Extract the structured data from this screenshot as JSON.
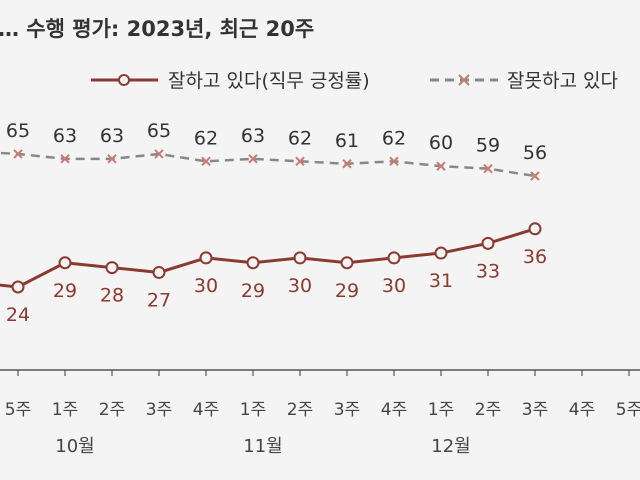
{
  "chart_data": {
    "type": "line",
    "title": "… 수행 평가: 2023년, 최근 20주",
    "x": [
      "5주",
      "1주",
      "2주",
      "3주",
      "4주",
      "1주",
      "2주",
      "3주",
      "4주",
      "1주",
      "2주",
      "3주",
      "4주",
      "5주"
    ],
    "month_labels": [
      {
        "label": "10월",
        "index": 1
      },
      {
        "label": "11월",
        "index": 5
      },
      {
        "label": "12월",
        "index": 9
      }
    ],
    "series": [
      {
        "name": "잘하고 있다(직무 긍정률)",
        "color": "#8b3a30",
        "marker": "circle",
        "lead_in": 25,
        "values": [
          24,
          29,
          28,
          27,
          30,
          29,
          30,
          29,
          30,
          31,
          33,
          36,
          null,
          null
        ]
      },
      {
        "name": "잘못하고 있다",
        "color": "#888888",
        "marker": "x",
        "lead_in": 66,
        "values": [
          65,
          63,
          63,
          65,
          62,
          63,
          62,
          61,
          62,
          60,
          59,
          56,
          null,
          null
        ]
      }
    ],
    "legend_position": "top"
  }
}
